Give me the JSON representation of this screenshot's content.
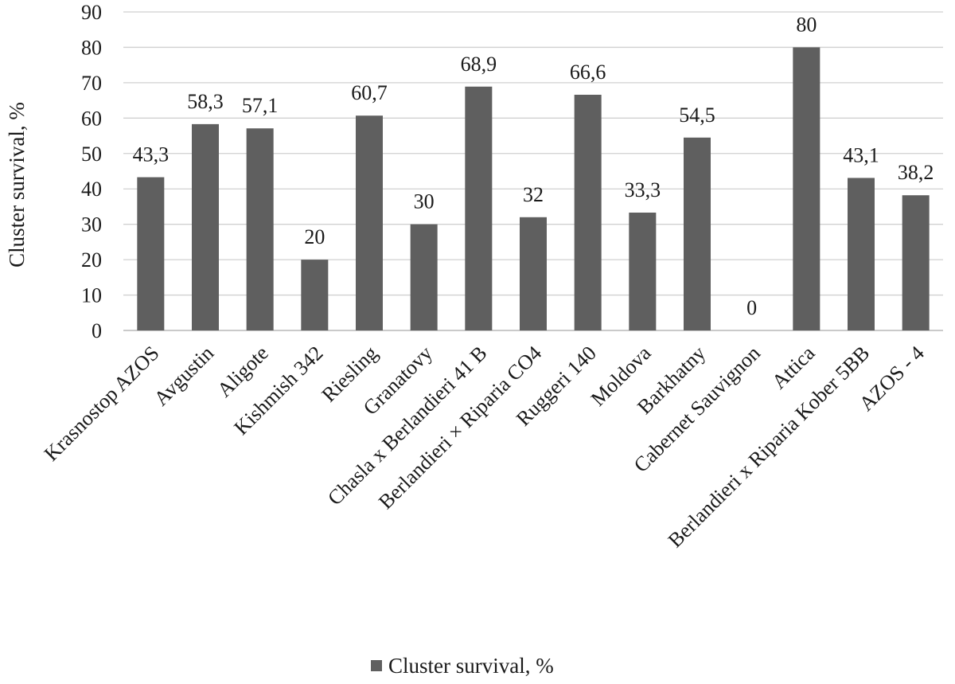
{
  "chart_data": {
    "type": "bar",
    "title": "",
    "xlabel": "",
    "ylabel": "Cluster survival, %",
    "ylim": [
      0,
      90
    ],
    "ytick_step": 10,
    "grid": true,
    "legend_position": "bottom",
    "categories": [
      "Krasnostop AZOS",
      "Avgustin",
      "Aligote",
      "Kishmish 342",
      "Riesling",
      "Granatovy",
      "Chasla x Berlandieri 41 B",
      "Berlandieri × Riparia CO4",
      "Ruggeri 140",
      "Moldova",
      "Barkhatny",
      "Cabernet Sauvignon",
      "Attica",
      "Berlandieri x Riparia Kober 5BB",
      "AZOS - 4"
    ],
    "series": [
      {
        "name": "Cluster survival, %",
        "color": "#5f5f5f",
        "values": [
          43.3,
          58.3,
          57.1,
          20,
          60.7,
          30,
          68.9,
          32,
          66.6,
          33.3,
          54.5,
          0,
          80,
          43.1,
          38.2
        ],
        "data_labels": [
          "43,3",
          "58,3",
          "57,1",
          "20",
          "60,7",
          "30",
          "68,9",
          "32",
          "66,6",
          "33,3",
          "54,5",
          "0",
          "80",
          "43,1",
          "38,2"
        ]
      }
    ]
  }
}
